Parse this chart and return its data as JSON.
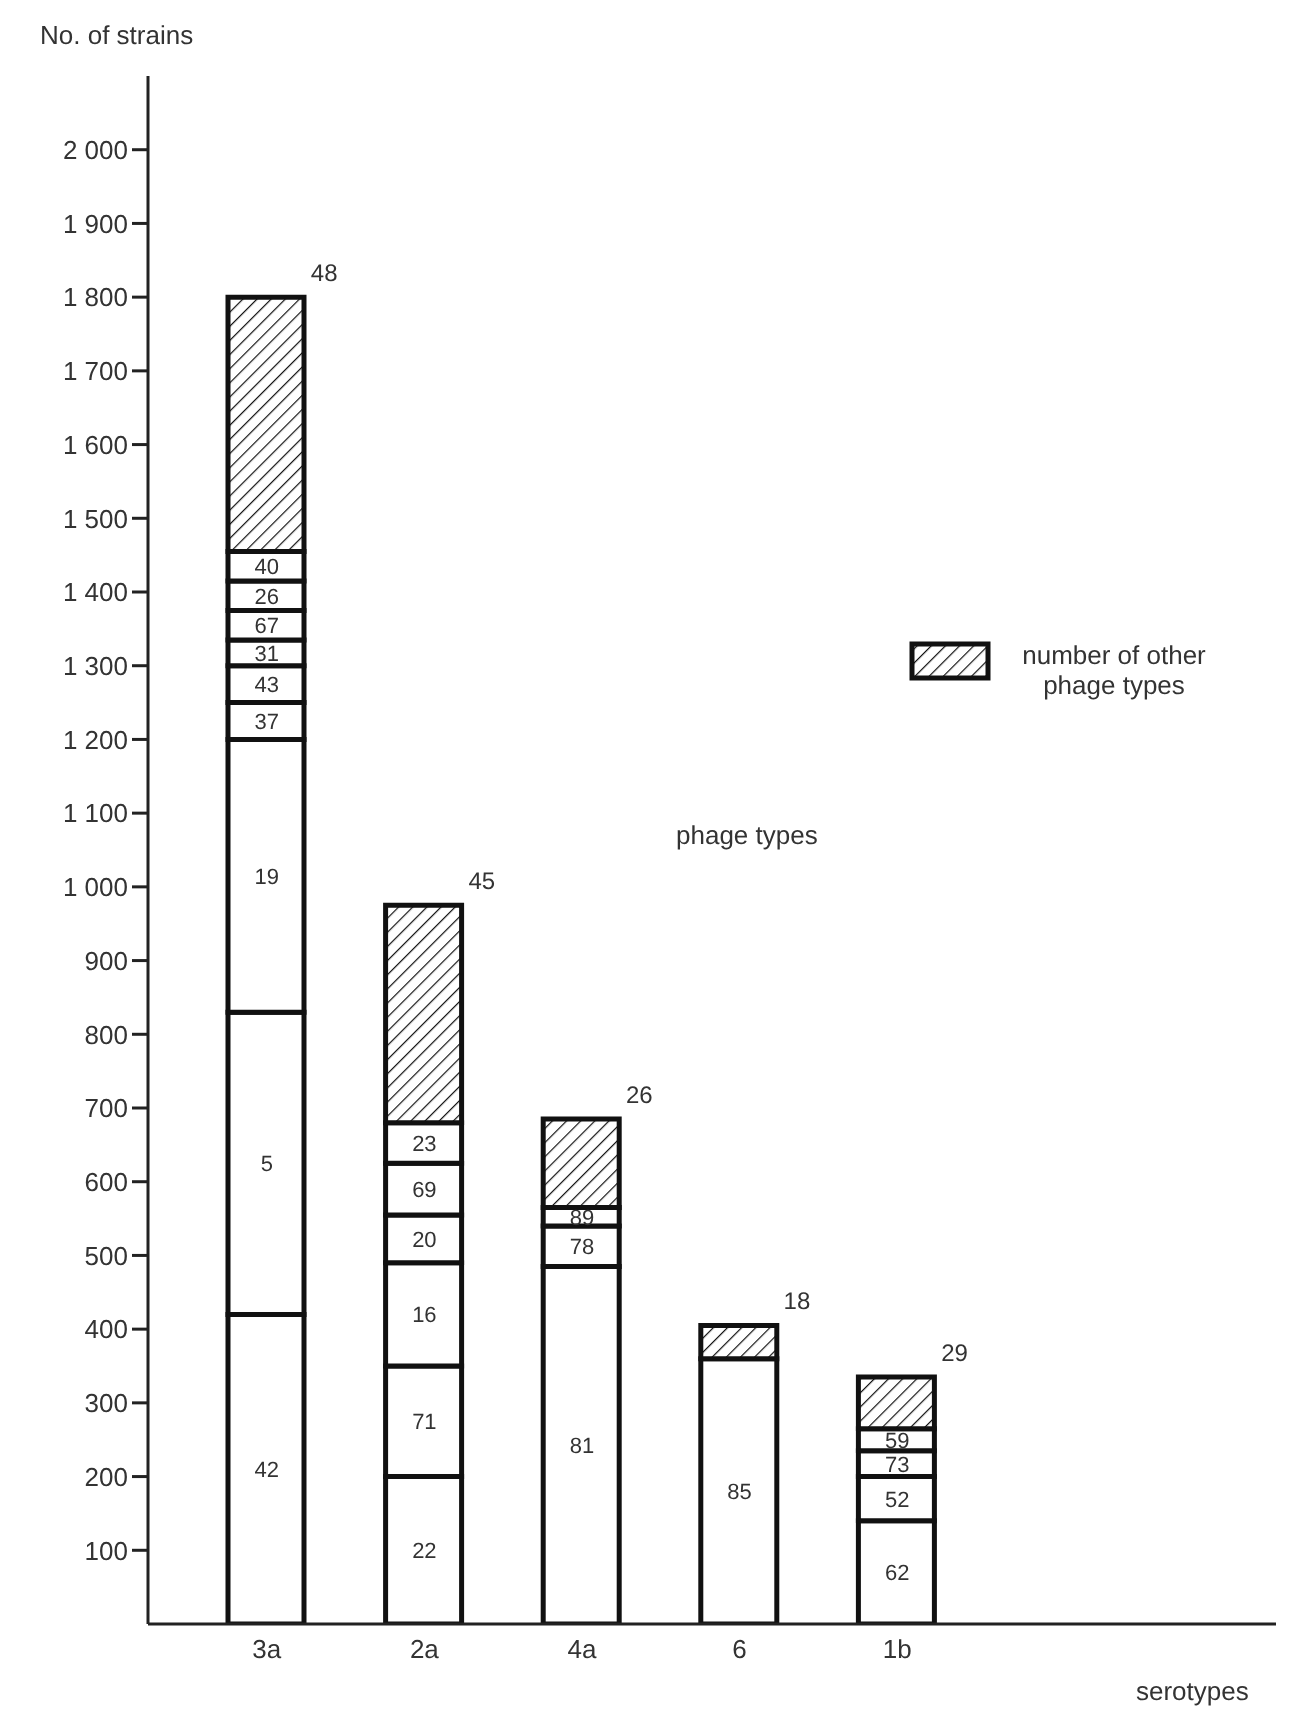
{
  "chart_data": {
    "type": "bar",
    "stacked": true,
    "ylabel": "No. of strains",
    "categories": [
      "3a",
      "2a",
      "4a",
      "6",
      "1b"
    ],
    "ylim": [
      0,
      2100
    ],
    "yticks": [
      {
        "value": 100,
        "label": "100"
      },
      {
        "value": 200,
        "label": "200"
      },
      {
        "value": 300,
        "label": "300"
      },
      {
        "value": 400,
        "label": "400"
      },
      {
        "value": 500,
        "label": "500"
      },
      {
        "value": 600,
        "label": "600"
      },
      {
        "value": 700,
        "label": "700"
      },
      {
        "value": 800,
        "label": "800"
      },
      {
        "value": 900,
        "label": "900"
      },
      {
        "value": 1000,
        "label": "1 000"
      },
      {
        "value": 1100,
        "label": "1 100"
      },
      {
        "value": 1200,
        "label": "1 200"
      },
      {
        "value": 1300,
        "label": "1 300"
      },
      {
        "value": 1400,
        "label": "1 400"
      },
      {
        "value": 1500,
        "label": "1 500"
      },
      {
        "value": 1600,
        "label": "1 600"
      },
      {
        "value": 1700,
        "label": "1 700"
      },
      {
        "value": 1800,
        "label": "1 800"
      },
      {
        "value": 1900,
        "label": "1 900"
      },
      {
        "value": 2000,
        "label": "2 000"
      }
    ],
    "series": [
      {
        "color": "#ffffff",
        "values": [
          420,
          200,
          485,
          360,
          140
        ]
      },
      {
        "color": "#ffffff",
        "values": [
          410,
          150,
          55,
          null,
          60
        ]
      },
      {
        "color": "#ffffff",
        "values": [
          370,
          140,
          25,
          null,
          35
        ]
      },
      {
        "color": "#ffffff",
        "values": [
          50,
          65,
          null,
          null,
          30
        ]
      },
      {
        "color": "#ffffff",
        "values": [
          50,
          70,
          null,
          null,
          null
        ]
      },
      {
        "color": "#ffffff",
        "values": [
          35,
          55,
          null,
          null,
          null
        ]
      },
      {
        "color": "#ffffff",
        "values": [
          40,
          null,
          null,
          null,
          null
        ]
      },
      {
        "color": "#ffffff",
        "values": [
          40,
          null,
          null,
          null,
          null
        ]
      },
      {
        "color": "#ffffff",
        "values": [
          40,
          null,
          null,
          null,
          null
        ]
      },
      {
        "name": "number of other phage types",
        "color": "#111111",
        "values": [
          345,
          295,
          120,
          45,
          70
        ]
      }
    ],
    "annotations": [
      "42",
      "5",
      "19",
      "37",
      "43",
      "31",
      "67",
      "26",
      "40",
      "48",
      "22",
      "71",
      "16",
      "20",
      "69",
      "23",
      "45",
      "81",
      "78",
      "89",
      "26",
      "85",
      "18",
      "62",
      "52",
      "73",
      "59",
      "29",
      "phage types",
      "serotypes"
    ],
    "legend": "right"
  }
}
